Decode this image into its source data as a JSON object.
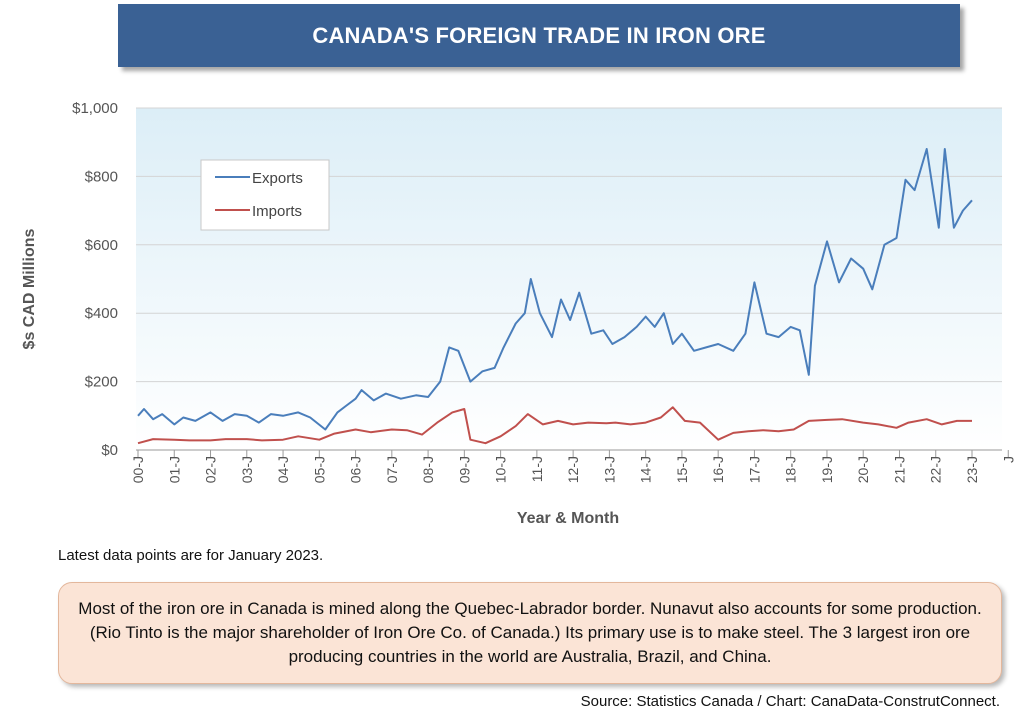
{
  "title": "CANADA'S FOREIGN TRADE IN IRON ORE",
  "note": "Latest data points are for January 2023.",
  "description": "Most of the iron ore in Canada is mined along the Quebec-Labrador border. Nunavut also accounts for some production. (Rio Tinto is the major shareholder of Iron Ore Co. of Canada.) Its primary use is to make steel. The 3 largest iron ore producing countries in the world are Australia, Brazil, and China.",
  "source": "Source: Statistics Canada / Chart: CanaData-ConstrutConnect.",
  "colors": {
    "exports": "#4a7ebb",
    "imports": "#c0504d",
    "title_bg": "#3a6194"
  },
  "chart_data": {
    "type": "line",
    "ylabel": "$s CAD Millions",
    "xlabel": "Year & Month",
    "ylim": [
      0,
      1000
    ],
    "y_ticks": [
      "$0",
      "$200",
      "$400",
      "$600",
      "$800",
      "$1,000"
    ],
    "x_tick_labels": [
      "00-J",
      "01-J",
      "02-J",
      "03-J",
      "04-J",
      "05-J",
      "06-J",
      "07-J",
      "08-J",
      "09-J",
      "10-J",
      "11-J",
      "12-J",
      "13-J",
      "14-J",
      "15-J",
      "16-J",
      "17-J",
      "18-J",
      "19-J",
      "20-J",
      "21-J",
      "22-J",
      "23-J",
      "J"
    ],
    "grid": true,
    "legend_position": "top-left",
    "series": [
      {
        "name": "Exports",
        "color": "#4a7ebb",
        "points": [
          [
            "2000-01",
            100
          ],
          [
            "2000-03",
            120
          ],
          [
            "2000-06",
            90
          ],
          [
            "2000-09",
            105
          ],
          [
            "2001-01",
            75
          ],
          [
            "2001-04",
            95
          ],
          [
            "2001-08",
            85
          ],
          [
            "2002-01",
            110
          ],
          [
            "2002-05",
            85
          ],
          [
            "2002-09",
            105
          ],
          [
            "2003-01",
            100
          ],
          [
            "2003-05",
            80
          ],
          [
            "2003-09",
            105
          ],
          [
            "2004-01",
            100
          ],
          [
            "2004-06",
            110
          ],
          [
            "2004-10",
            95
          ],
          [
            "2005-03",
            60
          ],
          [
            "2005-07",
            110
          ],
          [
            "2005-10",
            130
          ],
          [
            "2006-01",
            150
          ],
          [
            "2006-03",
            175
          ],
          [
            "2006-07",
            145
          ],
          [
            "2006-11",
            165
          ],
          [
            "2007-04",
            150
          ],
          [
            "2007-09",
            160
          ],
          [
            "2008-01",
            155
          ],
          [
            "2008-05",
            200
          ],
          [
            "2008-08",
            300
          ],
          [
            "2008-11",
            290
          ],
          [
            "2009-03",
            200
          ],
          [
            "2009-07",
            230
          ],
          [
            "2009-11",
            240
          ],
          [
            "2010-02",
            300
          ],
          [
            "2010-06",
            370
          ],
          [
            "2010-09",
            400
          ],
          [
            "2010-11",
            500
          ],
          [
            "2011-02",
            400
          ],
          [
            "2011-06",
            330
          ],
          [
            "2011-09",
            440
          ],
          [
            "2011-12",
            380
          ],
          [
            "2012-03",
            460
          ],
          [
            "2012-07",
            340
          ],
          [
            "2012-11",
            350
          ],
          [
            "2013-02",
            310
          ],
          [
            "2013-06",
            330
          ],
          [
            "2013-10",
            360
          ],
          [
            "2014-01",
            390
          ],
          [
            "2014-04",
            360
          ],
          [
            "2014-07",
            400
          ],
          [
            "2014-10",
            310
          ],
          [
            "2015-01",
            340
          ],
          [
            "2015-05",
            290
          ],
          [
            "2015-09",
            300
          ],
          [
            "2016-01",
            310
          ],
          [
            "2016-06",
            290
          ],
          [
            "2016-10",
            340
          ],
          [
            "2017-01",
            490
          ],
          [
            "2017-05",
            340
          ],
          [
            "2017-09",
            330
          ],
          [
            "2018-01",
            360
          ],
          [
            "2018-04",
            350
          ],
          [
            "2018-07",
            220
          ],
          [
            "2018-09",
            480
          ],
          [
            "2019-01",
            610
          ],
          [
            "2019-05",
            490
          ],
          [
            "2019-09",
            560
          ],
          [
            "2020-01",
            530
          ],
          [
            "2020-04",
            470
          ],
          [
            "2020-08",
            600
          ],
          [
            "2020-12",
            620
          ],
          [
            "2021-03",
            790
          ],
          [
            "2021-06",
            760
          ],
          [
            "2021-10",
            880
          ],
          [
            "2022-02",
            650
          ],
          [
            "2022-04",
            880
          ],
          [
            "2022-07",
            650
          ],
          [
            "2022-10",
            700
          ],
          [
            "2023-01",
            730
          ]
        ]
      },
      {
        "name": "Imports",
        "color": "#c0504d",
        "points": [
          [
            "2000-01",
            20
          ],
          [
            "2000-06",
            32
          ],
          [
            "2001-01",
            30
          ],
          [
            "2001-06",
            28
          ],
          [
            "2002-01",
            28
          ],
          [
            "2002-06",
            32
          ],
          [
            "2003-01",
            32
          ],
          [
            "2003-06",
            28
          ],
          [
            "2004-01",
            30
          ],
          [
            "2004-06",
            40
          ],
          [
            "2005-01",
            30
          ],
          [
            "2005-06",
            48
          ],
          [
            "2006-01",
            60
          ],
          [
            "2006-06",
            52
          ],
          [
            "2007-01",
            60
          ],
          [
            "2007-06",
            58
          ],
          [
            "2007-11",
            45
          ],
          [
            "2008-04",
            80
          ],
          [
            "2008-09",
            110
          ],
          [
            "2009-01",
            120
          ],
          [
            "2009-03",
            30
          ],
          [
            "2009-08",
            20
          ],
          [
            "2010-01",
            40
          ],
          [
            "2010-06",
            70
          ],
          [
            "2010-10",
            105
          ],
          [
            "2011-03",
            75
          ],
          [
            "2011-08",
            85
          ],
          [
            "2012-01",
            75
          ],
          [
            "2012-06",
            80
          ],
          [
            "2012-12",
            78
          ],
          [
            "2013-03",
            80
          ],
          [
            "2013-08",
            75
          ],
          [
            "2014-01",
            80
          ],
          [
            "2014-06",
            95
          ],
          [
            "2014-10",
            125
          ],
          [
            "2015-02",
            85
          ],
          [
            "2015-07",
            80
          ],
          [
            "2016-01",
            30
          ],
          [
            "2016-06",
            50
          ],
          [
            "2016-11",
            55
          ],
          [
            "2017-04",
            58
          ],
          [
            "2017-09",
            55
          ],
          [
            "2018-02",
            60
          ],
          [
            "2018-07",
            85
          ],
          [
            "2019-01",
            88
          ],
          [
            "2019-06",
            90
          ],
          [
            "2020-01",
            80
          ],
          [
            "2020-06",
            75
          ],
          [
            "2020-12",
            65
          ],
          [
            "2021-04",
            80
          ],
          [
            "2021-10",
            90
          ],
          [
            "2022-03",
            75
          ],
          [
            "2022-08",
            85
          ],
          [
            "2023-01",
            85
          ]
        ]
      }
    ]
  }
}
